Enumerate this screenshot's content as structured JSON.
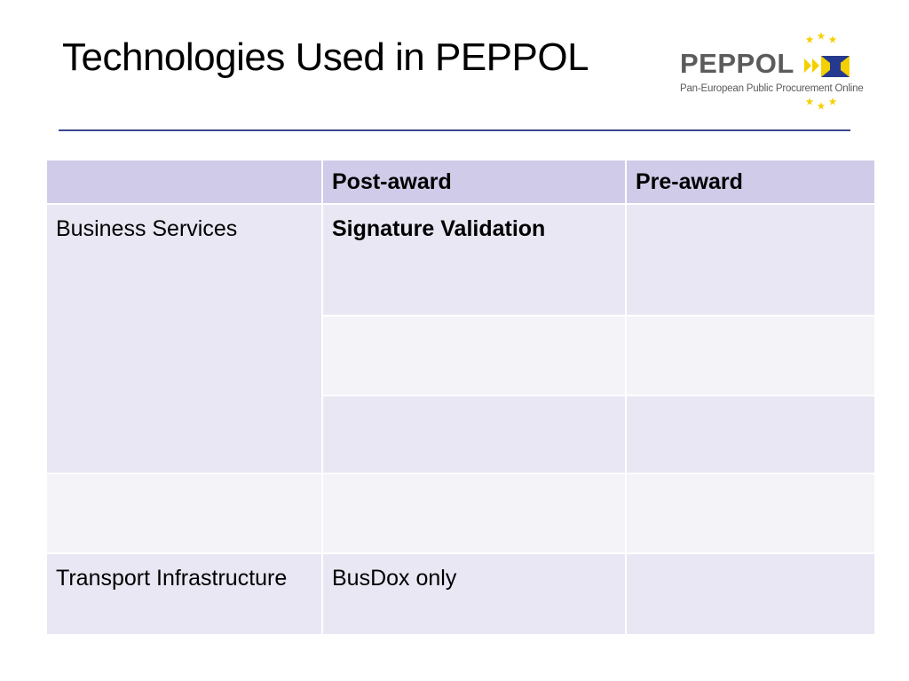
{
  "slide": {
    "title": "Technologies Used in PEPPOL"
  },
  "logo": {
    "wordmark": "PEPPOL",
    "tagline": "Pan-European Public Procurement Online",
    "star_color": "#f5d000",
    "flag_color": "#253a8f",
    "arrow_color": "#f5d000"
  },
  "colors": {
    "rule": "#3b4891",
    "header_bg": "#cfcbe8",
    "row_dark": "#e8e7f3",
    "row_light": "#f3f3f8",
    "post_award": "#ff0000",
    "pre_award": "#ffffff"
  },
  "table": {
    "headers": [
      "",
      "Post-award",
      "Pre-award"
    ],
    "rows": [
      {
        "category": "Business Services",
        "post": "Signature Validation",
        "pre": ""
      },
      {
        "category": "",
        "post": "",
        "pre": ""
      },
      {
        "category": "",
        "post": "",
        "pre": ""
      },
      {
        "category": "",
        "post": "",
        "pre": ""
      },
      {
        "category": "Transport Infrastructure",
        "post": "BusDox only",
        "pre": ""
      }
    ]
  }
}
